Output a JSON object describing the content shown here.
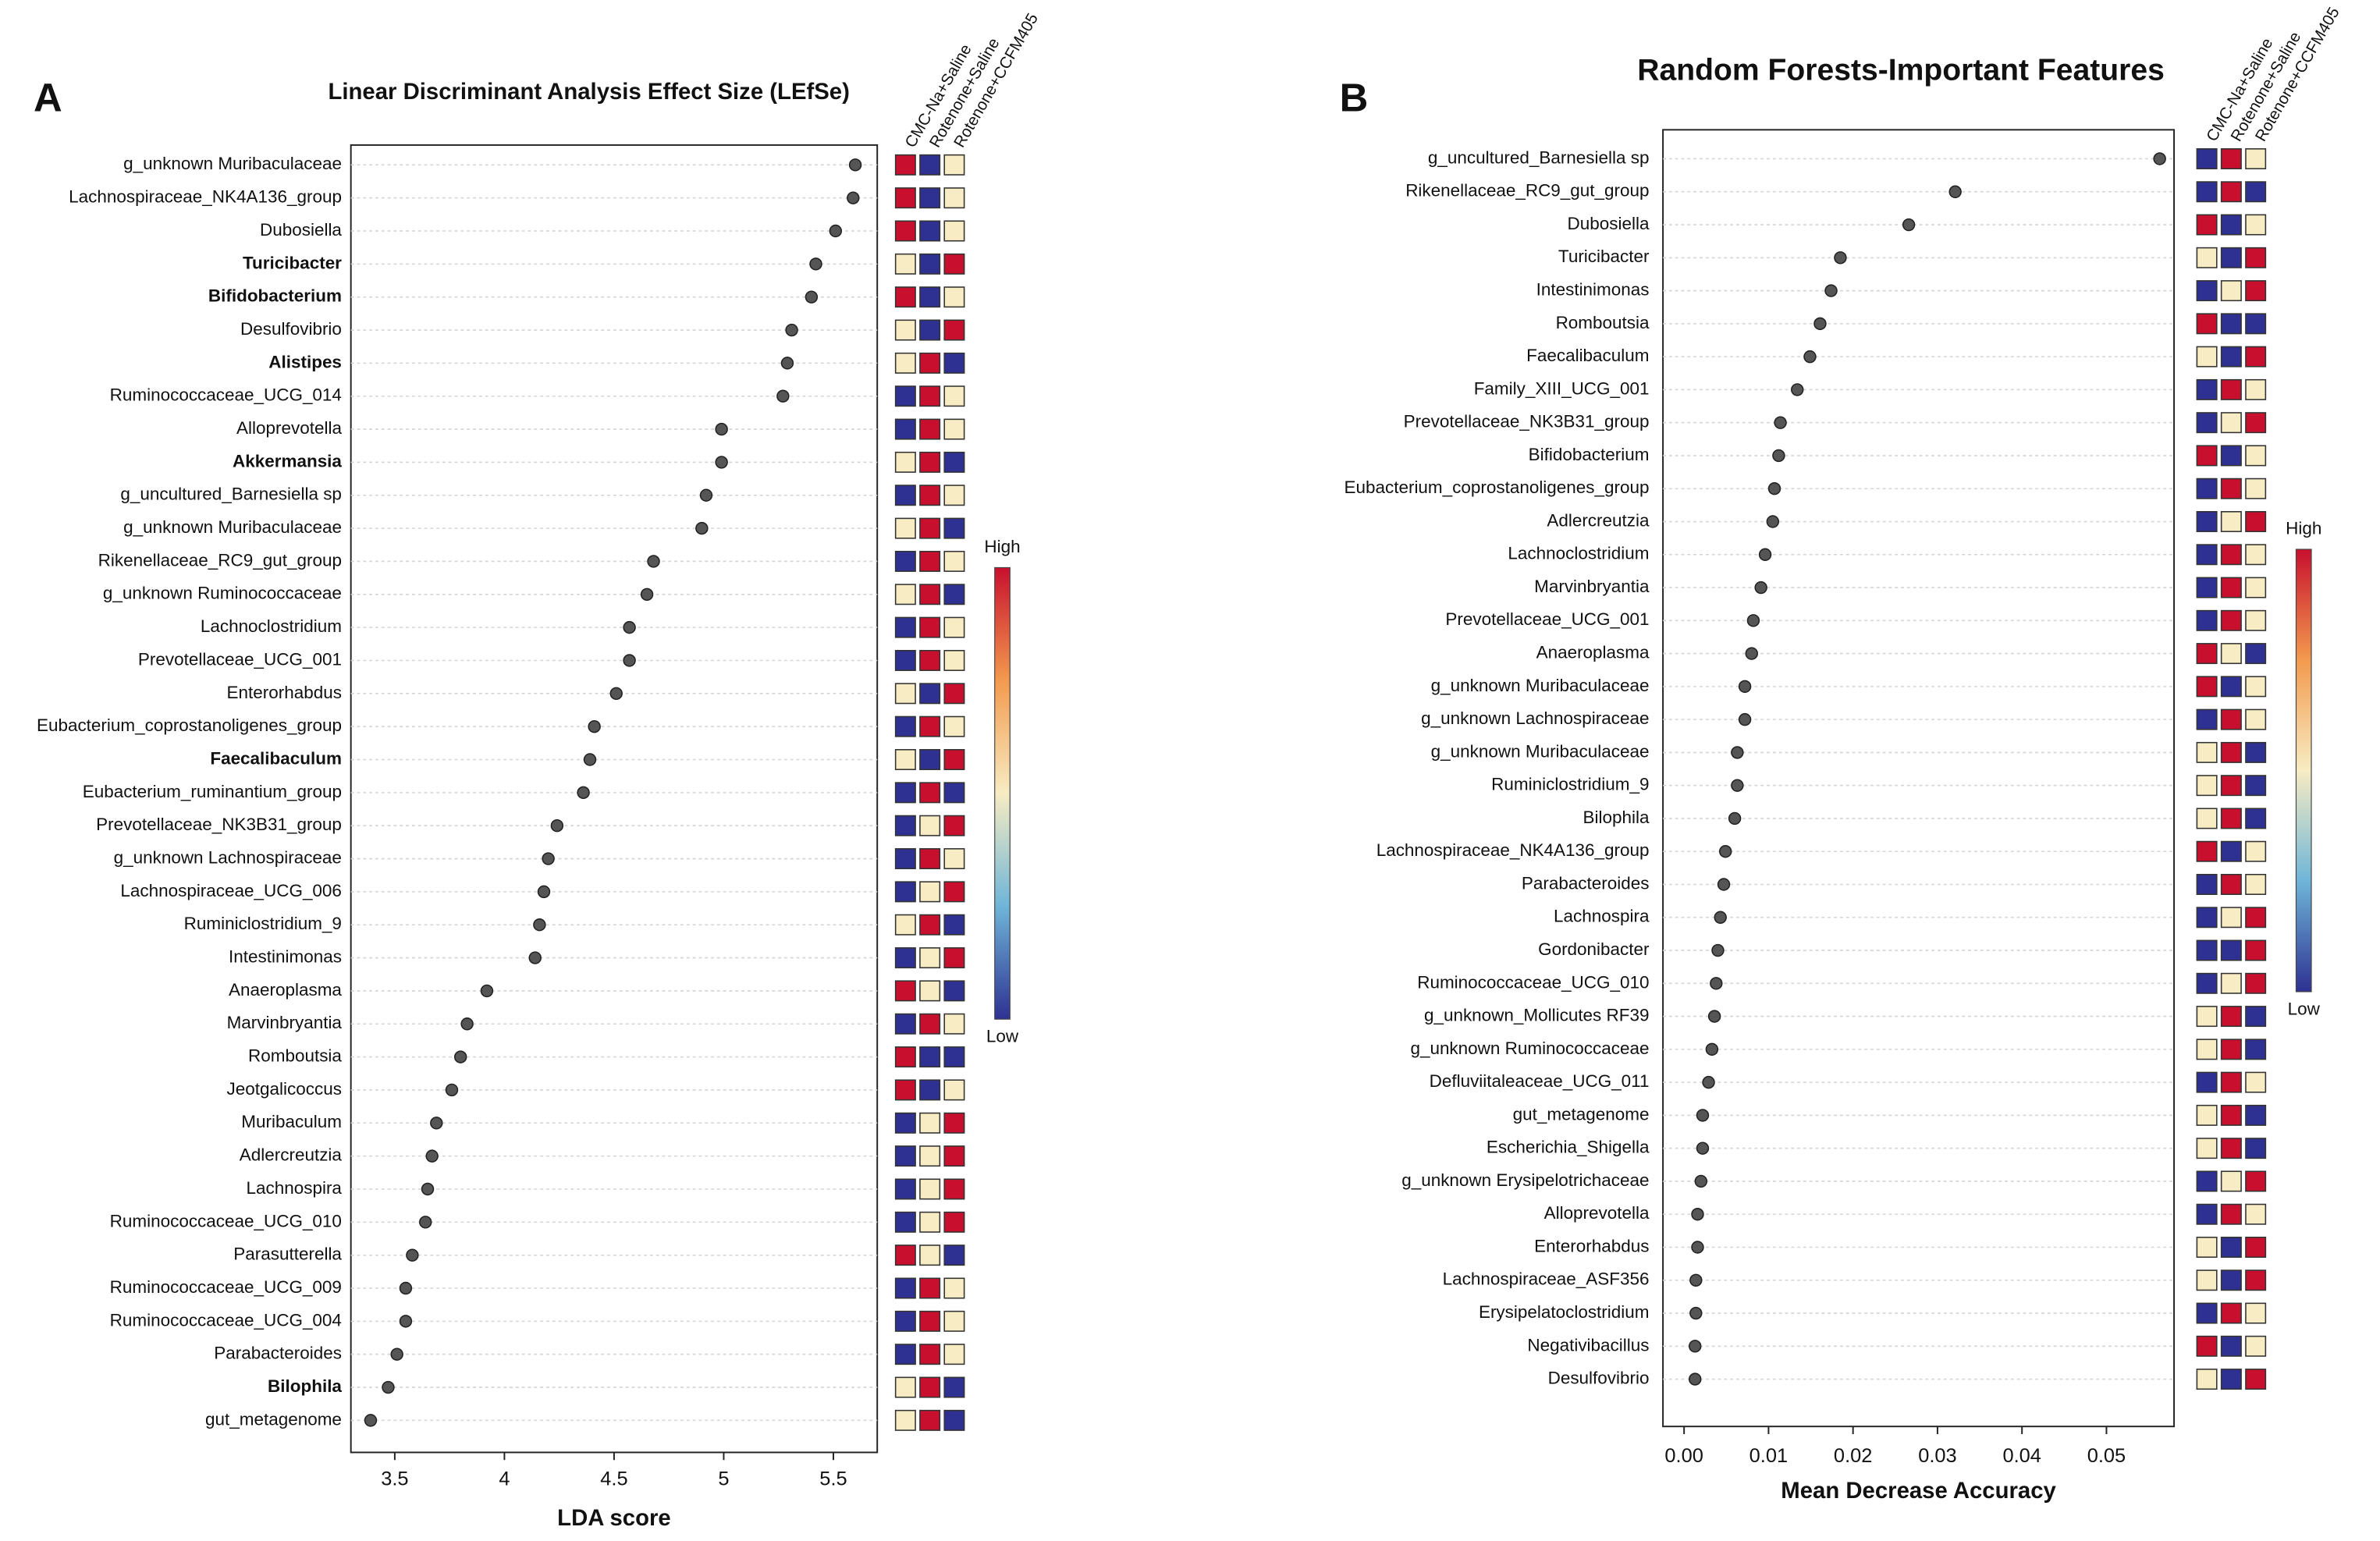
{
  "chart_data": [
    {
      "type": "dot",
      "panel": "A",
      "title": "Linear Discriminant Analysis Effect Size (LEfSe)",
      "xlabel": "LDA score",
      "xlim": [
        3.3,
        5.7
      ],
      "xticks": [
        3.5,
        4.0,
        4.5,
        5.0,
        5.5
      ],
      "categories": [
        "g_unknown Muribaculaceae",
        "Lachnospiraceae_NK4A136_group",
        "Dubosiella",
        "Turicibacter",
        "Bifidobacterium",
        "Desulfovibrio",
        "Alistipes",
        "Ruminococcaceae_UCG_014",
        "Alloprevotella",
        "Akkermansia",
        "g_uncultured_Barnesiella sp",
        "g_unknown Muribaculaceae",
        "Rikenellaceae_RC9_gut_group",
        "g_unknown Ruminococcaceae",
        "Lachnoclostridium",
        "Prevotellaceae_UCG_001",
        "Enterorhabdus",
        "Eubacterium_coprostanoligenes_group",
        "Faecalibaculum",
        "Eubacterium_ruminantium_group",
        "Prevotellaceae_NK3B31_group",
        "g_unknown Lachnospiraceae",
        "Lachnospiraceae_UCG_006",
        "Ruminiclostridium_9",
        "Intestinimonas",
        "Anaeroplasma",
        "Marvinbryantia",
        "Romboutsia",
        "Jeotgalicoccus",
        "Muribaculum",
        "Adlercreutzia",
        "Lachnospira",
        "Ruminococcaceae_UCG_010",
        "Parasutterella",
        "Ruminococcaceae_UCG_009",
        "Ruminococcaceae_UCG_004",
        "Parabacteroides",
        "Bilophila",
        "gut_metagenome"
      ],
      "values": [
        5.6,
        5.59,
        5.51,
        5.42,
        5.4,
        5.31,
        5.29,
        5.27,
        4.99,
        4.99,
        4.92,
        4.9,
        4.68,
        4.65,
        4.57,
        4.57,
        4.51,
        4.41,
        4.39,
        4.36,
        4.24,
        4.2,
        4.18,
        4.16,
        4.14,
        3.92,
        3.83,
        3.8,
        3.76,
        3.69,
        3.67,
        3.65,
        3.64,
        3.58,
        3.55,
        3.55,
        3.51,
        3.47,
        3.39
      ],
      "bold_categories": [
        3,
        4,
        6,
        9,
        18,
        37
      ],
      "heatmap": {
        "columns": [
          "CMC-Na+Saline",
          "Rotenone+Saline",
          "Rotenone+CCFM405"
        ],
        "colormap": [
          "#2e3192",
          "#6fb5d8",
          "#f7ecc3",
          "#f39a4e",
          "#c8102e"
        ],
        "legend_high": "High",
        "legend_low": "Low",
        "values": [
          [
            1,
            0,
            0.5
          ],
          [
            1,
            0,
            0.5
          ],
          [
            1,
            0,
            0.5
          ],
          [
            0.5,
            0,
            1
          ],
          [
            1,
            0,
            0.5
          ],
          [
            0.5,
            0,
            1
          ],
          [
            0.5,
            1,
            0
          ],
          [
            0,
            1,
            0.5
          ],
          [
            0,
            1,
            0.5
          ],
          [
            0.5,
            1,
            0
          ],
          [
            0,
            1,
            0.5
          ],
          [
            0.5,
            1,
            0
          ],
          [
            0,
            1,
            0.5
          ],
          [
            0.5,
            1,
            0
          ],
          [
            0,
            1,
            0.5
          ],
          [
            0,
            1,
            0.5
          ],
          [
            0.5,
            0,
            1
          ],
          [
            0,
            1,
            0.5
          ],
          [
            0.5,
            0,
            1
          ],
          [
            0,
            1,
            0
          ],
          [
            0,
            0.5,
            1
          ],
          [
            0,
            1,
            0.5
          ],
          [
            0,
            0.5,
            1
          ],
          [
            0.5,
            1,
            0
          ],
          [
            0,
            0.5,
            1
          ],
          [
            1,
            0.5,
            0
          ],
          [
            0,
            1,
            0.5
          ],
          [
            1,
            0,
            0
          ],
          [
            1,
            0,
            0.5
          ],
          [
            0,
            0.5,
            1
          ],
          [
            0,
            0.5,
            1
          ],
          [
            0,
            0.5,
            1
          ],
          [
            0,
            0.5,
            1
          ],
          [
            1,
            0.5,
            0
          ],
          [
            0,
            1,
            0.5
          ],
          [
            0,
            1,
            0.5
          ],
          [
            0,
            1,
            0.5
          ],
          [
            0.5,
            1,
            0
          ],
          [
            0.5,
            1,
            0
          ]
        ]
      }
    },
    {
      "type": "dot",
      "panel": "B",
      "title": "Random Forests-Important Features",
      "xlabel": "Mean Decrease Accuracy",
      "xlim": [
        -0.0025,
        0.058
      ],
      "xticks": [
        {
          "value": 0,
          "label": "0.00"
        },
        0.01,
        0.02,
        0.03,
        0.04,
        0.05
      ],
      "categories": [
        "g_uncultured_Barnesiella sp",
        "Rikenellaceae_RC9_gut_group",
        "Dubosiella",
        "Turicibacter",
        "Intestinimonas",
        "Romboutsia",
        "Faecalibaculum",
        "Family_XIII_UCG_001",
        "Prevotellaceae_NK3B31_group",
        "Bifidobacterium",
        "Eubacterium_coprostanoligenes_group",
        "Adlercreutzia",
        "Lachnoclostridium",
        "Marvinbryantia",
        "Prevotellaceae_UCG_001",
        "Anaeroplasma",
        "g_unknown Muribaculaceae",
        "g_unknown Lachnospiraceae",
        "g_unknown Muribaculaceae",
        "Ruminiclostridium_9",
        "Bilophila",
        "Lachnospiraceae_NK4A136_group",
        "Parabacteroides",
        "Lachnospira",
        "Gordonibacter",
        "Ruminococcaceae_UCG_010",
        "g_unknown_Mollicutes RF39",
        "g_unknown Ruminococcaceae",
        "Defluviitaleaceae_UCG_011",
        "gut_metagenome",
        "Escherichia_Shigella",
        "g_unknown Erysipelotrichaceae",
        "Alloprevotella",
        "Enterorhabdus",
        "Lachnospiraceae_ASF356",
        "Erysipelatoclostridium",
        "Negativibacillus",
        "Desulfovibrio"
      ],
      "values": [
        0.0563,
        0.0321,
        0.0266,
        0.0185,
        0.0174,
        0.0161,
        0.0149,
        0.0134,
        0.0114,
        0.0112,
        0.0107,
        0.0105,
        0.0096,
        0.0091,
        0.0082,
        0.008,
        0.0072,
        0.0072,
        0.0063,
        0.0063,
        0.006,
        0.0049,
        0.0047,
        0.0043,
        0.004,
        0.0038,
        0.0036,
        0.0033,
        0.0029,
        0.0022,
        0.0022,
        0.002,
        0.0016,
        0.0016,
        0.0014,
        0.0014,
        0.0013,
        0.0013
      ],
      "bold_categories": [],
      "heatmap": {
        "columns": [
          "CMC-Na+Saline",
          "Rotenone+Saline",
          "Rotenone+CCFM405"
        ],
        "colormap": [
          "#2e3192",
          "#6fb5d8",
          "#f7ecc3",
          "#f39a4e",
          "#c8102e"
        ],
        "legend_high": "High",
        "legend_low": "Low",
        "values": [
          [
            0,
            1,
            0.5
          ],
          [
            0,
            1,
            0
          ],
          [
            1,
            0,
            0.5
          ],
          [
            0.5,
            0,
            1
          ],
          [
            0,
            0.5,
            1
          ],
          [
            1,
            0,
            0
          ],
          [
            0.5,
            0,
            1
          ],
          [
            0,
            1,
            0.5
          ],
          [
            0,
            0.5,
            1
          ],
          [
            1,
            0,
            0.5
          ],
          [
            0,
            1,
            0.5
          ],
          [
            0,
            0.5,
            1
          ],
          [
            0,
            1,
            0.5
          ],
          [
            0,
            1,
            0.5
          ],
          [
            0,
            1,
            0.5
          ],
          [
            1,
            0.5,
            0
          ],
          [
            1,
            0,
            0.5
          ],
          [
            0,
            1,
            0.5
          ],
          [
            0.5,
            1,
            0
          ],
          [
            0.5,
            1,
            0
          ],
          [
            0.5,
            1,
            0
          ],
          [
            1,
            0,
            0.5
          ],
          [
            0,
            1,
            0.5
          ],
          [
            0,
            0.5,
            1
          ],
          [
            0,
            0,
            1
          ],
          [
            0,
            0.5,
            1
          ],
          [
            0.5,
            1,
            0
          ],
          [
            0.5,
            1,
            0
          ],
          [
            0,
            1,
            0.5
          ],
          [
            0.5,
            1,
            0
          ],
          [
            0.5,
            1,
            0
          ],
          [
            0,
            0.5,
            1
          ],
          [
            0,
            1,
            0.5
          ],
          [
            0.5,
            0,
            1
          ],
          [
            0.5,
            0,
            1
          ],
          [
            0,
            1,
            0.5
          ],
          [
            1,
            0,
            0.5
          ],
          [
            0.5,
            0,
            1
          ]
        ]
      }
    }
  ]
}
